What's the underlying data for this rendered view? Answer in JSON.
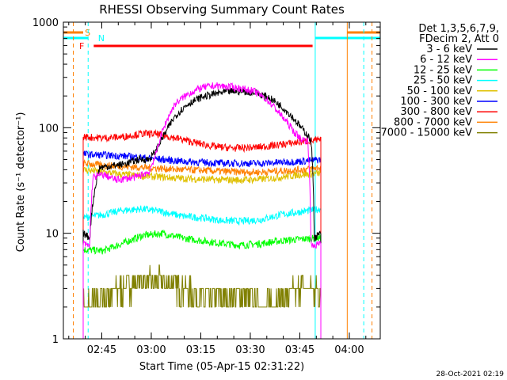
{
  "chart_data": {
    "type": "line",
    "title": "RHESSI Observing Summary Count Rates",
    "xlabel": "Start Time (05-Apr-15 02:31:22)",
    "ylabel": "Count Rate (s⁻¹ detector⁻¹)",
    "yscale": "log",
    "ylim": [
      1,
      1000
    ],
    "xlim_minutes": [
      2.0,
      98.0
    ],
    "x_ticks": [
      {
        "m": 13.63,
        "label": "02:45"
      },
      {
        "m": 28.63,
        "label": "03:00"
      },
      {
        "m": 43.63,
        "label": "03:15"
      },
      {
        "m": 58.63,
        "label": "03:30"
      },
      {
        "m": 73.63,
        "label": "03:45"
      },
      {
        "m": 88.63,
        "label": "04:00"
      }
    ],
    "y_ticks": [
      {
        "v": 1,
        "label": "1"
      },
      {
        "v": 10,
        "label": "10"
      },
      {
        "v": 100,
        "label": "100"
      },
      {
        "v": 1000,
        "label": "1000"
      }
    ],
    "legend_header": [
      "Det 1,3,5,6,7,9,",
      "FDecim 2, Att 0"
    ],
    "legend_position": "right",
    "series": [
      {
        "name": "3 - 6 keV",
        "color": "#000000",
        "points": [
          [
            8,
            10
          ],
          [
            10,
            9
          ],
          [
            13,
            42
          ],
          [
            20,
            45
          ],
          [
            25,
            50
          ],
          [
            28,
            50
          ],
          [
            30,
            60
          ],
          [
            33,
            90
          ],
          [
            36,
            130
          ],
          [
            40,
            170
          ],
          [
            44,
            195
          ],
          [
            48,
            210
          ],
          [
            52,
            220
          ],
          [
            56,
            222
          ],
          [
            60,
            215
          ],
          [
            64,
            195
          ],
          [
            68,
            160
          ],
          [
            72,
            120
          ],
          [
            74,
            100
          ],
          [
            76,
            85
          ],
          [
            77,
            75
          ],
          [
            78,
            9
          ],
          [
            80,
            10
          ]
        ]
      },
      {
        "name": "6 - 12 keV",
        "color": "#ff00ff",
        "points": [
          [
            8,
            8
          ],
          [
            10,
            7.5
          ],
          [
            11,
            34
          ],
          [
            14,
            36
          ],
          [
            18,
            32
          ],
          [
            24,
            34
          ],
          [
            28,
            38
          ],
          [
            30,
            55
          ],
          [
            33,
            110
          ],
          [
            36,
            170
          ],
          [
            40,
            210
          ],
          [
            44,
            240
          ],
          [
            48,
            250
          ],
          [
            52,
            245
          ],
          [
            56,
            235
          ],
          [
            60,
            220
          ],
          [
            64,
            180
          ],
          [
            68,
            130
          ],
          [
            72,
            90
          ],
          [
            74,
            78
          ],
          [
            76,
            75
          ],
          [
            77,
            7.5
          ],
          [
            80,
            8
          ]
        ]
      },
      {
        "name": "12 - 25 keV",
        "color": "#00ff00",
        "points": [
          [
            8,
            7
          ],
          [
            14,
            6.8
          ],
          [
            20,
            8
          ],
          [
            26,
            9.5
          ],
          [
            32,
            10
          ],
          [
            38,
            9
          ],
          [
            44,
            8.5
          ],
          [
            50,
            8
          ],
          [
            56,
            7.7
          ],
          [
            62,
            8
          ],
          [
            68,
            8.5
          ],
          [
            74,
            8.8
          ],
          [
            80,
            9
          ]
        ]
      },
      {
        "name": "25 - 50 keV",
        "color": "#00ffff",
        "points": [
          [
            8,
            14
          ],
          [
            14,
            15
          ],
          [
            20,
            16.5
          ],
          [
            26,
            17
          ],
          [
            32,
            16
          ],
          [
            38,
            14.5
          ],
          [
            44,
            14
          ],
          [
            50,
            13.2
          ],
          [
            56,
            13
          ],
          [
            62,
            13.5
          ],
          [
            68,
            15
          ],
          [
            74,
            16
          ],
          [
            80,
            17
          ]
        ]
      },
      {
        "name": "50 - 100 keV",
        "color": "#e0c000",
        "points": [
          [
            8,
            40
          ],
          [
            14,
            38
          ],
          [
            20,
            36
          ],
          [
            26,
            35
          ],
          [
            32,
            34
          ],
          [
            38,
            33
          ],
          [
            44,
            32.5
          ],
          [
            50,
            32
          ],
          [
            56,
            32
          ],
          [
            62,
            32.5
          ],
          [
            68,
            34
          ],
          [
            74,
            36
          ],
          [
            80,
            37
          ]
        ]
      },
      {
        "name": "100 - 300 keV",
        "color": "#0000ff",
        "points": [
          [
            8,
            56
          ],
          [
            14,
            55
          ],
          [
            20,
            54
          ],
          [
            26,
            52
          ],
          [
            32,
            50
          ],
          [
            38,
            48
          ],
          [
            44,
            47
          ],
          [
            50,
            46
          ],
          [
            56,
            46
          ],
          [
            62,
            46
          ],
          [
            68,
            47
          ],
          [
            74,
            48
          ],
          [
            80,
            50
          ]
        ]
      },
      {
        "name": "300 - 800 keV",
        "color": "#ff0000",
        "points": [
          [
            8,
            82
          ],
          [
            14,
            80
          ],
          [
            20,
            82
          ],
          [
            26,
            88
          ],
          [
            30,
            87
          ],
          [
            36,
            80
          ],
          [
            42,
            72
          ],
          [
            48,
            66
          ],
          [
            54,
            64
          ],
          [
            60,
            65
          ],
          [
            66,
            68
          ],
          [
            72,
            72
          ],
          [
            76,
            75
          ],
          [
            80,
            76
          ]
        ]
      },
      {
        "name": "800 - 7000 keV",
        "color": "#ff8000",
        "points": [
          [
            8,
            46
          ],
          [
            14,
            44
          ],
          [
            20,
            43
          ],
          [
            26,
            42
          ],
          [
            32,
            41
          ],
          [
            38,
            40
          ],
          [
            44,
            39.5
          ],
          [
            50,
            38.5
          ],
          [
            56,
            38
          ],
          [
            62,
            38
          ],
          [
            68,
            39
          ],
          [
            74,
            40
          ],
          [
            80,
            42
          ]
        ]
      },
      {
        "name": "7000 - 15000 keV",
        "color": "#808000",
        "points": [
          [
            8,
            2
          ],
          [
            14,
            2.5
          ],
          [
            20,
            3
          ],
          [
            26,
            3.5
          ],
          [
            32,
            3.5
          ],
          [
            38,
            3
          ],
          [
            44,
            2.5
          ],
          [
            50,
            2.5
          ],
          [
            56,
            2.5
          ],
          [
            62,
            2
          ],
          [
            68,
            2.5
          ],
          [
            74,
            3
          ],
          [
            80,
            3
          ]
        ]
      }
    ],
    "flags": [
      {
        "label": "S",
        "color": "#ff8000"
      },
      {
        "label": "N",
        "color": "#00ffff"
      },
      {
        "label": "F",
        "color": "#ff0000"
      }
    ],
    "timestamp": "28-Oct-2021 02:19"
  }
}
